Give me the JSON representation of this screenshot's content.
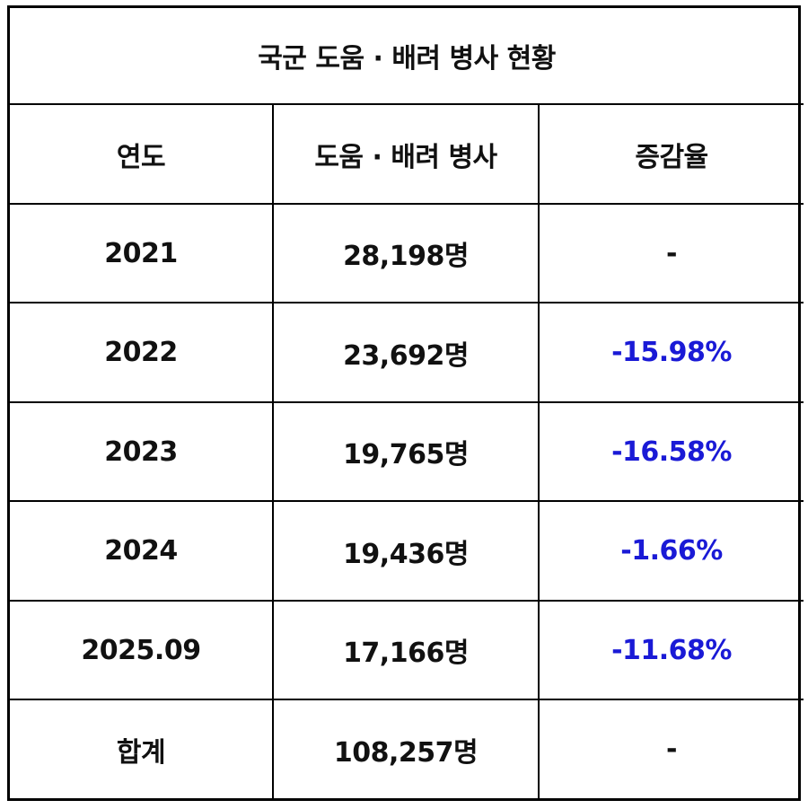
{
  "table": {
    "title": "국군 도움 · 배려 병사 현황",
    "headers": [
      "연도",
      "도움 · 배려 병사",
      "증감율"
    ],
    "rows": [
      {
        "year": "2021",
        "count": "28,198명",
        "change": "-"
      },
      {
        "year": "2022",
        "count": "23,692명",
        "change": "-15.98%"
      },
      {
        "year": "2023",
        "count": "19,765명",
        "change": "-16.58%"
      },
      {
        "year": "2024",
        "count": "19,436명",
        "change": "-1.66%"
      },
      {
        "year": "2025.09",
        "count": "17,166명",
        "change": "-11.68%"
      },
      {
        "year": "합계",
        "count": "108,257명",
        "change": "-"
      }
    ],
    "colors": {
      "negative_change": "#1a1ad6",
      "text": "#111111",
      "border": "#000000"
    }
  }
}
